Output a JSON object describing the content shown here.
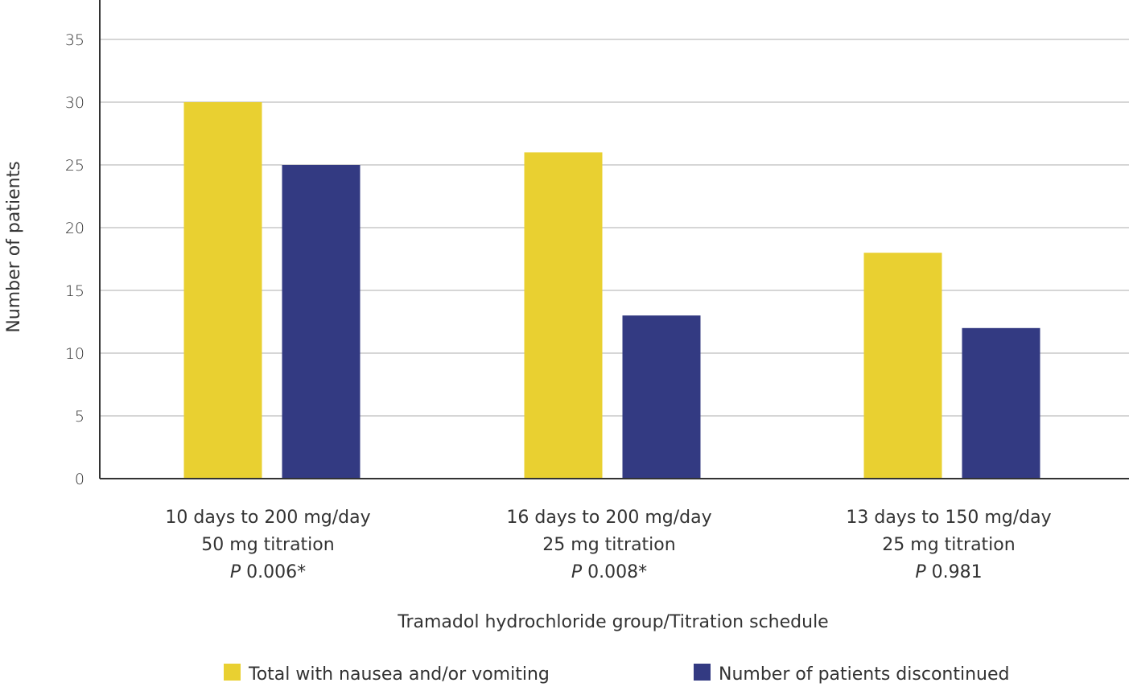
{
  "chart_data": {
    "type": "bar",
    "title": "",
    "xlabel": "Tramadol hydrochloride group/Titration schedule",
    "ylabel": "Number of patients",
    "ylim": [
      0,
      38
    ],
    "yticks": [
      0,
      5,
      10,
      15,
      20,
      25,
      30,
      35
    ],
    "grid": true,
    "legend_position": "bottom",
    "categories": [
      {
        "line1": "10 days to 200 mg/day",
        "line2": "50 mg titration",
        "p_prefix": "P",
        "p_value": "0.006*"
      },
      {
        "line1": "16 days to 200 mg/day",
        "line2": "25 mg titration",
        "p_prefix": "P",
        "p_value": "0.008*"
      },
      {
        "line1": "13 days to 150 mg/day",
        "line2": "25 mg titration",
        "p_prefix": "P",
        "p_value": "0.981"
      }
    ],
    "series": [
      {
        "name": "Total with nausea and/or vomiting",
        "color": "#e9d031",
        "values": [
          30,
          26,
          18
        ]
      },
      {
        "name": "Number of patients discontinued",
        "color": "#333a82",
        "values": [
          25,
          13,
          12
        ]
      }
    ],
    "colors": {
      "grid": "#c8c8c8",
      "axis": "#333333"
    }
  }
}
